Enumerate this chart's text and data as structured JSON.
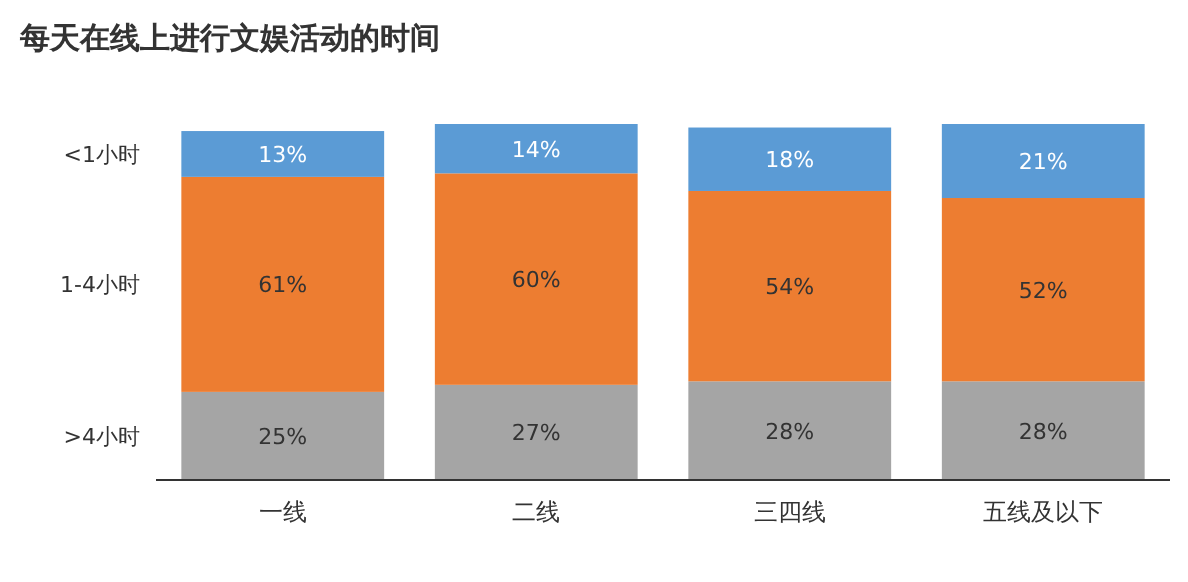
{
  "chart_data": {
    "type": "bar",
    "title": "每天在线上进行文娱活动的时间",
    "stacked": true,
    "categories": [
      "一线",
      "二线",
      "三四线",
      "五线及以下"
    ],
    "series": [
      {
        "name": ">4小时",
        "color": "#a5a5a5",
        "values": [
          25,
          27,
          28,
          28
        ],
        "value_labels": [
          "25%",
          "27%",
          "28%",
          "28%"
        ]
      },
      {
        "name": "1-4小时",
        "color": "#ed7d31",
        "values": [
          61,
          60,
          54,
          52
        ],
        "value_labels": [
          "61%",
          "60%",
          "54%",
          "52%"
        ]
      },
      {
        "name": "<1小时",
        "color": "#5b9bd5",
        "values": [
          13,
          14,
          18,
          21
        ],
        "value_labels": [
          "13%",
          "14%",
          "18%",
          "21%"
        ]
      }
    ],
    "ylim": [
      0,
      101
    ],
    "tick_labels": "x",
    "legend": false
  }
}
